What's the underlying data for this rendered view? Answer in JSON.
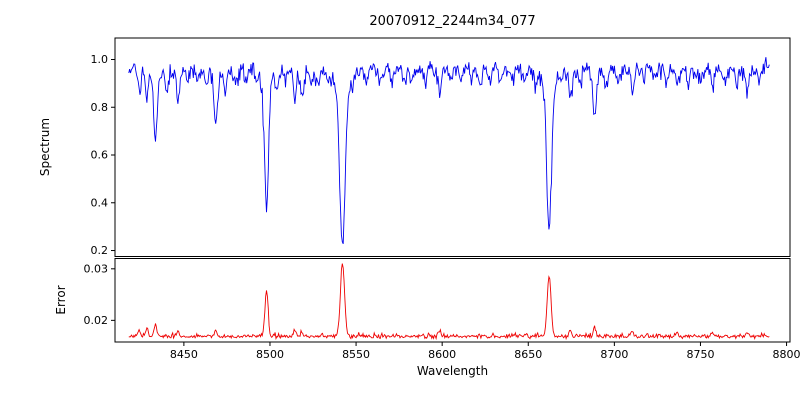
{
  "chart_data": {
    "type": "line",
    "title": "20070912_2244m34_077",
    "xlabel": "Wavelength",
    "x_range": [
      8410,
      8802
    ],
    "x_data_range": [
      8418,
      8790
    ],
    "x_step": 0.5,
    "seed": 42,
    "grid": false,
    "legend": "none",
    "xticks": {
      "values": [
        8450,
        8500,
        8550,
        8600,
        8650,
        8700,
        8750,
        8800
      ],
      "labels": [
        "8450",
        "8500",
        "8550",
        "8600",
        "8650",
        "8700",
        "8750",
        "8800"
      ]
    },
    "panels": [
      {
        "name": "spectrum",
        "ylabel": "Spectrum",
        "color": "#0000ee",
        "ylim": [
          0.175,
          1.09
        ],
        "yticks": {
          "values": [
            0.2,
            0.4,
            0.6,
            0.8,
            1.0
          ],
          "labels": [
            "0.2",
            "0.4",
            "0.6",
            "0.8",
            "1.0"
          ]
        },
        "continuum": 0.98,
        "noise_sym": 0.012,
        "noise_down": 0.022,
        "absorption_lines": [
          {
            "c": 8424.0,
            "d": 0.09,
            "s": 0.8
          },
          {
            "c": 8428.5,
            "d": 0.13,
            "s": 0.8
          },
          {
            "c": 8433.5,
            "d": 0.3,
            "s": 1.0
          },
          {
            "c": 8440.0,
            "d": 0.1,
            "s": 0.8
          },
          {
            "c": 8446.5,
            "d": 0.15,
            "s": 0.8
          },
          {
            "c": 8452.0,
            "d": 0.07,
            "s": 0.8
          },
          {
            "c": 8458.0,
            "d": 0.06,
            "s": 0.8
          },
          {
            "c": 8463.0,
            "d": 0.07,
            "s": 0.8
          },
          {
            "c": 8468.5,
            "d": 0.24,
            "s": 0.9
          },
          {
            "c": 8474.0,
            "d": 0.09,
            "s": 0.8
          },
          {
            "c": 8480.0,
            "d": 0.06,
            "s": 0.8
          },
          {
            "c": 8486.0,
            "d": 0.05,
            "s": 0.8
          },
          {
            "c": 8492.0,
            "d": 0.05,
            "s": 0.8
          },
          {
            "c": 8498.0,
            "d": 0.58,
            "s": 1.1
          },
          {
            "c": 8504.0,
            "d": 0.06,
            "s": 0.8
          },
          {
            "c": 8509.0,
            "d": 0.05,
            "s": 0.8
          },
          {
            "c": 8514.5,
            "d": 0.14,
            "s": 0.8
          },
          {
            "c": 8518.5,
            "d": 0.12,
            "s": 0.8
          },
          {
            "c": 8524.0,
            "d": 0.06,
            "s": 0.8
          },
          {
            "c": 8528.0,
            "d": 0.08,
            "s": 0.8
          },
          {
            "c": 8534.0,
            "d": 0.06,
            "s": 0.8
          },
          {
            "c": 8542.1,
            "d": 0.74,
            "s": 1.5
          },
          {
            "c": 8548.0,
            "d": 0.05,
            "s": 0.8
          },
          {
            "c": 8556.0,
            "d": 0.06,
            "s": 0.8
          },
          {
            "c": 8564.0,
            "d": 0.07,
            "s": 0.8
          },
          {
            "c": 8571.0,
            "d": 0.05,
            "s": 0.8
          },
          {
            "c": 8578.0,
            "d": 0.05,
            "s": 0.8
          },
          {
            "c": 8582.0,
            "d": 0.07,
            "s": 0.8
          },
          {
            "c": 8590.0,
            "d": 0.05,
            "s": 0.8
          },
          {
            "c": 8598.5,
            "d": 0.1,
            "s": 0.8
          },
          {
            "c": 8605.0,
            "d": 0.05,
            "s": 0.8
          },
          {
            "c": 8611.0,
            "d": 0.06,
            "s": 0.8
          },
          {
            "c": 8617.0,
            "d": 0.05,
            "s": 0.8
          },
          {
            "c": 8621.5,
            "d": 0.07,
            "s": 0.8
          },
          {
            "c": 8628.0,
            "d": 0.05,
            "s": 0.8
          },
          {
            "c": 8634.0,
            "d": 0.06,
            "s": 0.8
          },
          {
            "c": 8641.0,
            "d": 0.05,
            "s": 0.8
          },
          {
            "c": 8648.0,
            "d": 0.06,
            "s": 0.8
          },
          {
            "c": 8654.0,
            "d": 0.05,
            "s": 0.8
          },
          {
            "c": 8662.1,
            "d": 0.67,
            "s": 1.3
          },
          {
            "c": 8669.0,
            "d": 0.07,
            "s": 0.8
          },
          {
            "c": 8674.5,
            "d": 0.13,
            "s": 0.8
          },
          {
            "c": 8680.0,
            "d": 0.07,
            "s": 0.8
          },
          {
            "c": 8688.5,
            "d": 0.22,
            "s": 0.9
          },
          {
            "c": 8696.0,
            "d": 0.07,
            "s": 0.8
          },
          {
            "c": 8702.0,
            "d": 0.06,
            "s": 0.8
          },
          {
            "c": 8710.5,
            "d": 0.11,
            "s": 0.8
          },
          {
            "c": 8717.0,
            "d": 0.05,
            "s": 0.8
          },
          {
            "c": 8723.0,
            "d": 0.05,
            "s": 0.8
          },
          {
            "c": 8730.0,
            "d": 0.06,
            "s": 0.8
          },
          {
            "c": 8736.5,
            "d": 0.09,
            "s": 0.8
          },
          {
            "c": 8743.0,
            "d": 0.05,
            "s": 0.8
          },
          {
            "c": 8750.0,
            "d": 0.06,
            "s": 0.8
          },
          {
            "c": 8757.0,
            "d": 0.08,
            "s": 0.8
          },
          {
            "c": 8764.0,
            "d": 0.05,
            "s": 0.8
          },
          {
            "c": 8771.0,
            "d": 0.06,
            "s": 0.8
          },
          {
            "c": 8777.0,
            "d": 0.08,
            "s": 0.8
          },
          {
            "c": 8784.0,
            "d": 0.06,
            "s": 0.8
          }
        ]
      },
      {
        "name": "error",
        "ylabel": "Error",
        "color": "#ee0000",
        "ylim": [
          0.0158,
          0.032
        ],
        "yticks": {
          "values": [
            0.02,
            0.03
          ],
          "labels": [
            "0.02",
            "0.03"
          ]
        },
        "baseline": 0.0167,
        "noise_up": 0.00028,
        "noise_sym": 0.00012,
        "peaks": [
          {
            "c": 8424.0,
            "h": 0.0014,
            "s": 0.7
          },
          {
            "c": 8428.5,
            "h": 0.0017,
            "s": 0.7
          },
          {
            "c": 8433.5,
            "h": 0.0021,
            "s": 0.8
          },
          {
            "c": 8446.5,
            "h": 0.0011,
            "s": 0.7
          },
          {
            "c": 8468.5,
            "h": 0.0012,
            "s": 0.7
          },
          {
            "c": 8498.0,
            "h": 0.0092,
            "s": 0.9
          },
          {
            "c": 8514.5,
            "h": 0.001,
            "s": 0.7
          },
          {
            "c": 8518.5,
            "h": 0.0009,
            "s": 0.7
          },
          {
            "c": 8542.1,
            "h": 0.0143,
            "s": 1.2
          },
          {
            "c": 8598.5,
            "h": 0.0009,
            "s": 0.7
          },
          {
            "c": 8662.1,
            "h": 0.0118,
            "s": 1.1
          },
          {
            "c": 8674.5,
            "h": 0.0012,
            "s": 0.7
          },
          {
            "c": 8688.5,
            "h": 0.0017,
            "s": 0.7
          },
          {
            "c": 8710.5,
            "h": 0.001,
            "s": 0.7
          },
          {
            "c": 8736.5,
            "h": 0.0008,
            "s": 0.7
          },
          {
            "c": 8757.0,
            "h": 0.0009,
            "s": 0.7
          },
          {
            "c": 8777.0,
            "h": 0.0009,
            "s": 0.7
          }
        ]
      }
    ]
  }
}
